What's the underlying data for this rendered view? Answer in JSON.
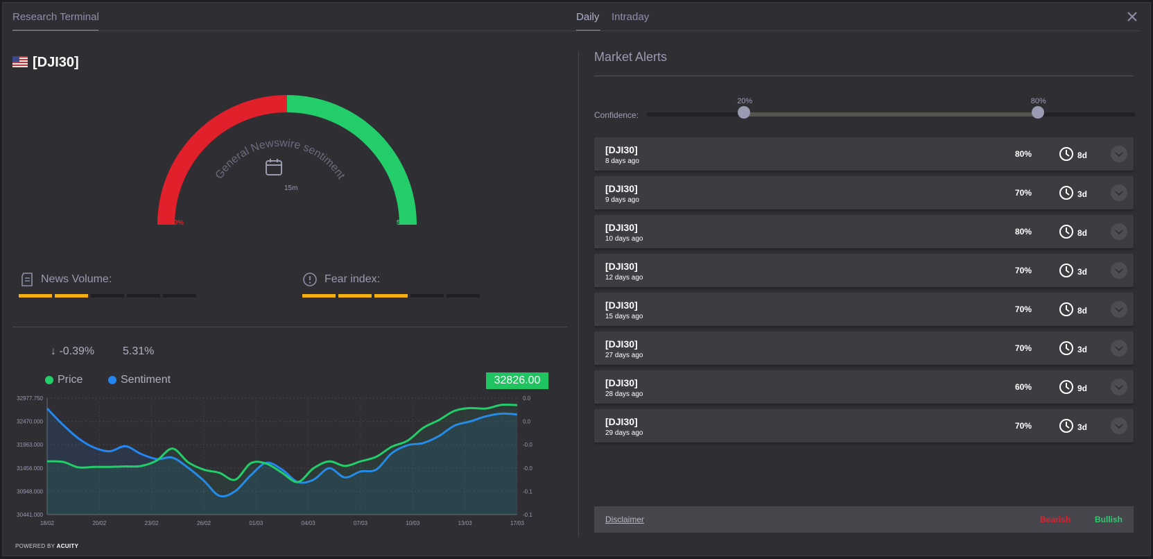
{
  "header": {
    "title": "Research Terminal",
    "tabs": [
      {
        "label": "Daily",
        "active": true
      },
      {
        "label": "Intraday",
        "active": false
      }
    ]
  },
  "instrument": {
    "symbol": "[DJI30]",
    "flag": "us-flag-icon"
  },
  "gauge": {
    "caption": "General Newswire sentiment",
    "timeframe": "15m",
    "bearish_pct": "50%",
    "bullish_pct": "50%",
    "bearish_share": 0.5,
    "colors": {
      "bearish": "#e0202b",
      "bullish": "#23cd6a"
    }
  },
  "metrics": {
    "news_volume": {
      "label": "News Volume:",
      "level": 2,
      "max": 5
    },
    "fear_index": {
      "label": "Fear index:",
      "level": 3,
      "max": 5
    }
  },
  "stats": {
    "change": "-0.39%",
    "sentiment": "5.31%"
  },
  "legend": {
    "price": "Price",
    "sentiment": "Sentiment"
  },
  "chart_data": {
    "type": "line",
    "x_ticks": [
      "18/02",
      "20/02",
      "23/02",
      "26/02",
      "01/03",
      "04/03",
      "07/03",
      "10/03",
      "13/03",
      "17/03"
    ],
    "y_left_ticks": [
      "32977.750",
      "32470.000",
      "31963.000",
      "31456.000",
      "30948.000",
      "30441.000"
    ],
    "y_right_ticks": [
      "0.0",
      "0.0",
      "-0.0",
      "-0.0",
      "-0.1",
      "-0.1"
    ],
    "last_price": "32826.00",
    "series": [
      {
        "name": "Price",
        "color": "#23cd6a",
        "values": [
          31600,
          31590,
          31470,
          31480,
          31480,
          31490,
          31500,
          31620,
          31880,
          31580,
          31420,
          31350,
          31200,
          31560,
          31550,
          31350,
          31150,
          31450,
          31600,
          31500,
          31600,
          31700,
          31920,
          32050,
          32330,
          32500,
          32700,
          32760,
          32750,
          32830,
          32826
        ]
      },
      {
        "name": "Sentiment",
        "color": "#2586f0",
        "values": [
          32750,
          32400,
          32100,
          31900,
          31820,
          31930,
          31760,
          31650,
          31680,
          31460,
          31180,
          30850,
          30950,
          31300,
          31570,
          31420,
          31150,
          31200,
          31450,
          31250,
          31380,
          31420,
          31780,
          31950,
          32000,
          32150,
          32380,
          32470,
          32580,
          32640,
          32620
        ]
      }
    ]
  },
  "footer_brand": {
    "prefix": "POWERED BY",
    "brand": "ACUITY"
  },
  "market_alerts": {
    "title": "Market Alerts",
    "confidence": {
      "label": "Confidence:",
      "min_label": "20%",
      "max_label": "80%",
      "min": 0.2,
      "max": 0.8
    },
    "alerts": [
      {
        "title": "[DJI30]",
        "time": "8 days ago",
        "pct": "80%",
        "duration": "8d"
      },
      {
        "title": "[DJI30]",
        "time": "9 days ago",
        "pct": "70%",
        "duration": "3d"
      },
      {
        "title": "[DJI30]",
        "time": "10 days ago",
        "pct": "80%",
        "duration": "8d"
      },
      {
        "title": "[DJI30]",
        "time": "12 days ago",
        "pct": "70%",
        "duration": "3d"
      },
      {
        "title": "[DJI30]",
        "time": "15 days ago",
        "pct": "70%",
        "duration": "8d"
      },
      {
        "title": "[DJI30]",
        "time": "27 days ago",
        "pct": "70%",
        "duration": "3d"
      },
      {
        "title": "[DJI30]",
        "time": "28 days ago",
        "pct": "60%",
        "duration": "9d"
      },
      {
        "title": "[DJI30]",
        "time": "29 days ago",
        "pct": "70%",
        "duration": "3d"
      }
    ],
    "footer": {
      "disclaimer": "Disclaimer",
      "bearish": "Bearish",
      "bullish": "Bullish"
    }
  }
}
